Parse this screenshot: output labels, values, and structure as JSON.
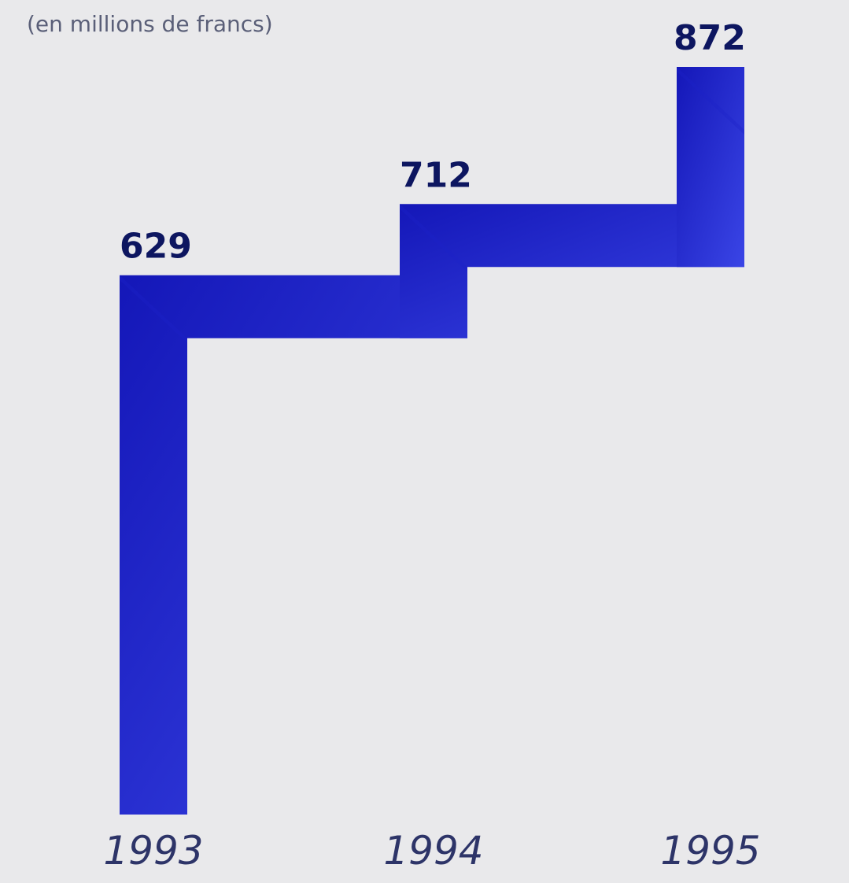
{
  "chart_data": {
    "type": "step",
    "subtitle": "(en millions de francs)",
    "categories": [
      "1993",
      "1994",
      "1995"
    ],
    "values": [
      629,
      712,
      872
    ],
    "color": "#1c22c9"
  }
}
